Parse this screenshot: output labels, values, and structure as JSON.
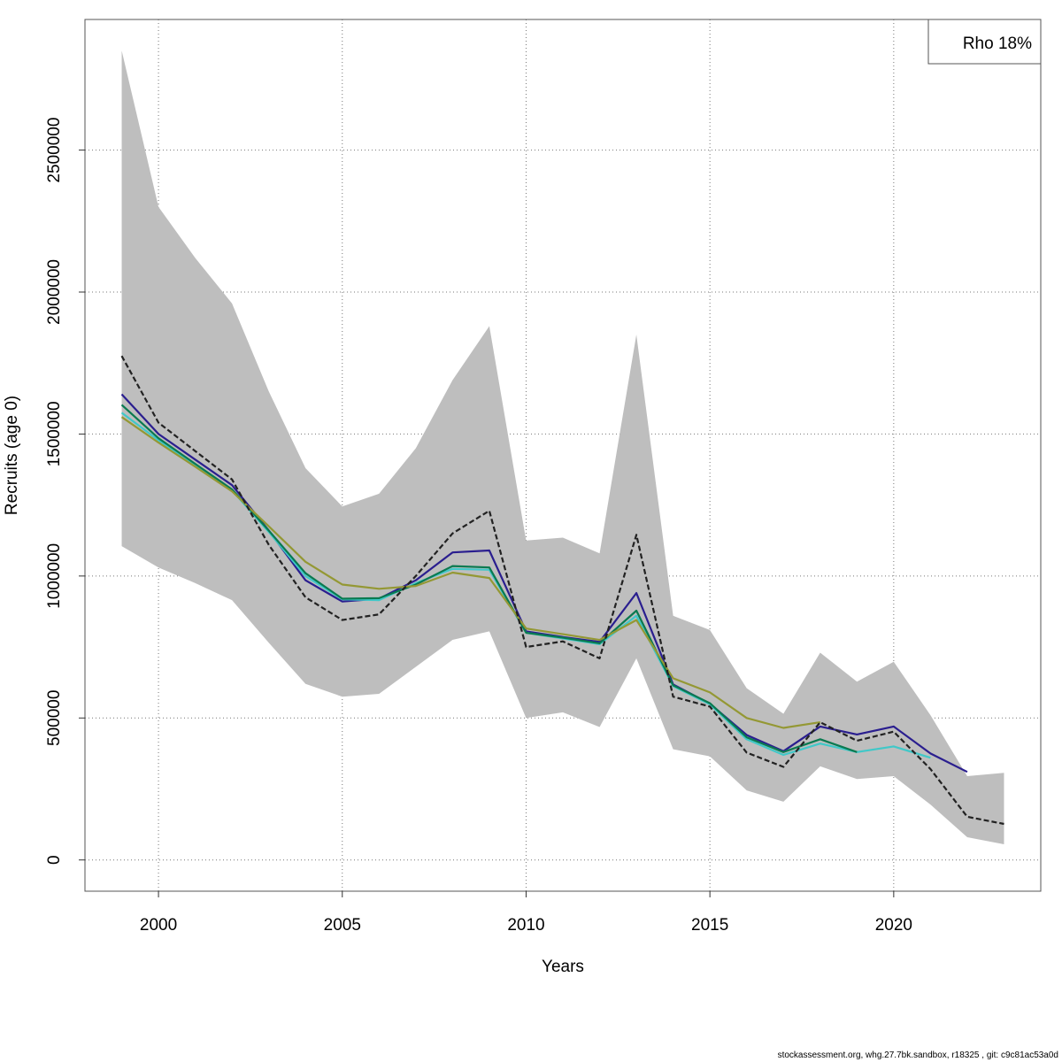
{
  "chart_data": {
    "type": "line",
    "title": "",
    "xlabel": "Years",
    "ylabel": "Recruits (age 0)",
    "xlim": [
      1998,
      2024
    ],
    "ylim": [
      -110000,
      2960000
    ],
    "x_ticks": [
      2000,
      2005,
      2010,
      2015,
      2020
    ],
    "x_tick_labels": [
      "2000",
      "2005",
      "2010",
      "2015",
      "2020"
    ],
    "y_ticks": [
      0,
      500000,
      1000000,
      1500000,
      2000000,
      2500000
    ],
    "y_tick_labels": [
      "0",
      "500000",
      "1000000",
      "1500000",
      "2000000",
      "2500000"
    ],
    "grid": true,
    "legend": {
      "placement": "top-right",
      "text": "Rho 18%"
    },
    "confidence_band": {
      "color": "#bebebe",
      "x": [
        1999,
        2000,
        2001,
        2002,
        2003,
        2004,
        2005,
        2006,
        2007,
        2008,
        2009,
        2010,
        2011,
        2012,
        2013,
        2014,
        2015,
        2016,
        2017,
        2018,
        2019,
        2020,
        2021,
        2022,
        2023
      ],
      "upper": [
        2850000,
        2300000,
        2120000,
        1960000,
        1650000,
        1380000,
        1245000,
        1290000,
        1450000,
        1690000,
        1880000,
        1125000,
        1135000,
        1080000,
        1850000,
        860000,
        810000,
        605000,
        515000,
        730000,
        628000,
        698000,
        510000,
        295000,
        307000
      ],
      "lower": [
        1105000,
        1030000,
        975000,
        915000,
        765000,
        620000,
        575000,
        585000,
        680000,
        775000,
        805000,
        500000,
        520000,
        468000,
        710000,
        390000,
        365000,
        245000,
        205000,
        330000,
        285000,
        295000,
        195000,
        80000,
        55000
      ]
    },
    "series": [
      {
        "color": "#222222",
        "dashed": true,
        "x": [
          1999,
          2000,
          2001,
          2002,
          2003,
          2004,
          2005,
          2006,
          2007,
          2008,
          2009,
          2010,
          2011,
          2012,
          2013,
          2014,
          2015,
          2016,
          2017,
          2018,
          2019,
          2020,
          2021,
          2022,
          2023
        ],
        "values": [
          1775000,
          1540000,
          1440000,
          1340000,
          1110000,
          925000,
          845000,
          865000,
          1000000,
          1150000,
          1230000,
          750000,
          770000,
          710000,
          1145000,
          575000,
          540000,
          378000,
          328000,
          485000,
          420000,
          452000,
          320000,
          152000,
          127000
        ]
      },
      {
        "color": "#2a1e8f",
        "dashed": false,
        "x": [
          1999,
          2000,
          2001,
          2002,
          2003,
          2004,
          2005,
          2006,
          2007,
          2008,
          2009,
          2010,
          2011,
          2012,
          2013,
          2014,
          2015,
          2016,
          2017,
          2018,
          2019,
          2020,
          2021,
          2022
        ],
        "values": [
          1640000,
          1500000,
          1410000,
          1320000,
          1160000,
          985000,
          910000,
          920000,
          985000,
          1083000,
          1090000,
          805000,
          785000,
          768000,
          940000,
          618000,
          550000,
          440000,
          383000,
          470000,
          442000,
          470000,
          375000,
          310000
        ]
      },
      {
        "color": "#40c8c8",
        "dashed": false,
        "x": [
          1999,
          2000,
          2001,
          2002,
          2003,
          2004,
          2005,
          2006,
          2007,
          2008,
          2009,
          2010,
          2011,
          2012,
          2013,
          2014,
          2015,
          2016,
          2017,
          2018,
          2019,
          2020,
          2021
        ],
        "values": [
          1575000,
          1478000,
          1390000,
          1302000,
          1155000,
          1000000,
          918000,
          915000,
          975000,
          1025000,
          1022000,
          800000,
          780000,
          760000,
          860000,
          612000,
          548000,
          425000,
          370000,
          410000,
          380000,
          400000,
          360000
        ]
      },
      {
        "color": "#0a7a50",
        "dashed": false,
        "x": [
          1999,
          2000,
          2001,
          2002,
          2003,
          2004,
          2005,
          2006,
          2007,
          2008,
          2009,
          2010,
          2011,
          2012,
          2013,
          2014,
          2015,
          2016,
          2017,
          2018,
          2019
        ],
        "values": [
          1603000,
          1485000,
          1395000,
          1305000,
          1160000,
          1010000,
          920000,
          922000,
          970000,
          1035000,
          1030000,
          800000,
          783000,
          763000,
          878000,
          615000,
          552000,
          432000,
          380000,
          425000,
          380000
        ]
      },
      {
        "color": "#949834",
        "dashed": false,
        "x": [
          1999,
          2000,
          2001,
          2002,
          2003,
          2004,
          2005,
          2006,
          2007,
          2008,
          2009,
          2010,
          2011,
          2012,
          2013,
          2014,
          2015,
          2016,
          2017,
          2018
        ],
        "values": [
          1560000,
          1470000,
          1385000,
          1298000,
          1175000,
          1050000,
          970000,
          955000,
          965000,
          1012000,
          993000,
          815000,
          795000,
          775000,
          845000,
          640000,
          590000,
          500000,
          465000,
          485000
        ]
      }
    ]
  },
  "footer": "stockassessment.org, whg.27.7bk.sandbox, r18325 , git: c9c81ac53a0d"
}
